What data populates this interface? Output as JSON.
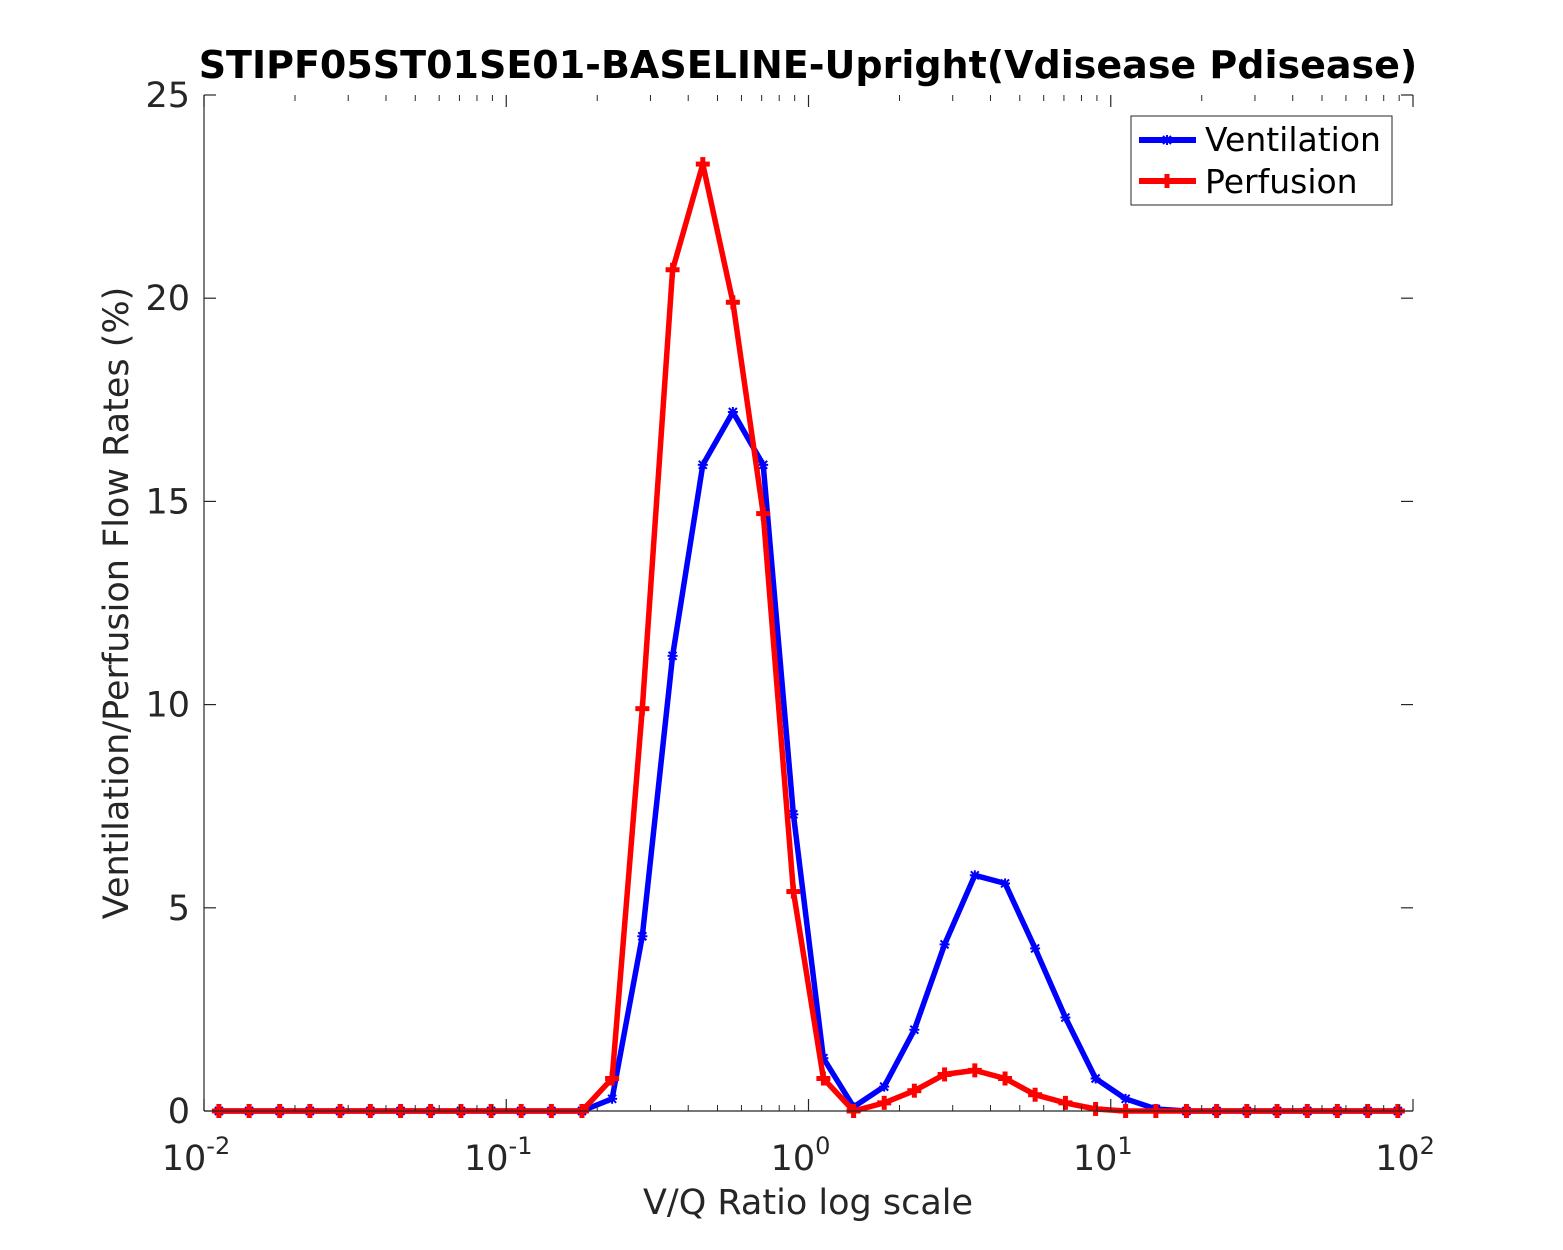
{
  "chart_data": {
    "type": "line",
    "title": "STIPF05ST01SE01-BASELINE-Upright(Vdisease Pdisease)",
    "xlabel": "V/Q Ratio log scale",
    "ylabel": "Ventilation/Perfusion Flow Rates (%)",
    "xscale": "log",
    "xlim": [
      0.01,
      100
    ],
    "ylim": [
      0,
      25
    ],
    "xticks": [
      {
        "base": "10",
        "exp": "-2"
      },
      {
        "base": "10",
        "exp": "-1"
      },
      {
        "base": "10",
        "exp": "0"
      },
      {
        "base": "10",
        "exp": "1"
      },
      {
        "base": "10",
        "exp": "2"
      }
    ],
    "yticks": [
      "0",
      "5",
      "10",
      "15",
      "20",
      "25"
    ],
    "grid": false,
    "legend_position": "top-right",
    "x": [
      0.0112,
      0.0141,
      0.0178,
      0.0224,
      0.0282,
      0.0355,
      0.0447,
      0.0562,
      0.0708,
      0.0891,
      0.112,
      0.141,
      0.178,
      0.224,
      0.282,
      0.355,
      0.447,
      0.562,
      0.708,
      0.891,
      1.12,
      1.41,
      1.78,
      2.24,
      2.82,
      3.55,
      4.47,
      5.62,
      7.08,
      8.91,
      11.2,
      14.1,
      17.8,
      22.4,
      28.2,
      35.5,
      44.7,
      56.2,
      70.8,
      89.1
    ],
    "series": [
      {
        "name": "Ventilation",
        "color": "#0000ff",
        "marker": "star",
        "values": [
          0,
          0,
          0,
          0,
          0,
          0,
          0,
          0,
          0,
          0,
          0,
          0,
          0,
          0.3,
          4.3,
          11.2,
          15.9,
          17.2,
          15.9,
          7.3,
          1.3,
          0.1,
          0.6,
          2.0,
          4.1,
          5.8,
          5.6,
          4.0,
          2.3,
          0.8,
          0.3,
          0.05,
          0,
          0,
          0,
          0,
          0,
          0,
          0,
          0
        ]
      },
      {
        "name": "Perfusion",
        "color": "#ff0000",
        "marker": "plus",
        "values": [
          0,
          0,
          0,
          0,
          0,
          0,
          0,
          0,
          0,
          0,
          0,
          0,
          0,
          0.8,
          9.9,
          20.7,
          23.3,
          19.9,
          14.7,
          5.4,
          0.8,
          0,
          0.2,
          0.5,
          0.9,
          1.0,
          0.8,
          0.4,
          0.2,
          0.05,
          0,
          0,
          0,
          0,
          0,
          0,
          0,
          0,
          0,
          0
        ]
      }
    ]
  }
}
